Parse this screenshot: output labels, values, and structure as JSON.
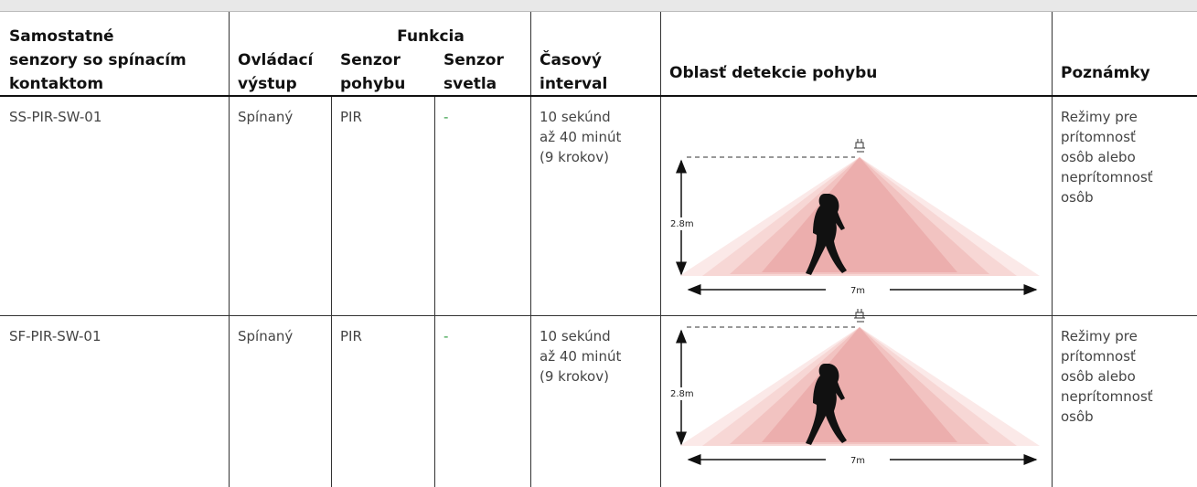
{
  "header": {
    "group": "Funkcia",
    "columns": [
      [
        "Samostatné",
        "senzory so spínacím",
        "kontaktom"
      ],
      [
        "Ovládací",
        "výstup"
      ],
      [
        "Senzor",
        "pohybu"
      ],
      [
        "Senzor",
        "svetla"
      ],
      [
        "Časový",
        "interval"
      ],
      [
        "Oblasť detekcie pohybu"
      ],
      [
        "Poznámky"
      ]
    ]
  },
  "rows": [
    {
      "cells": [
        [
          "SS-PIR-SW-01"
        ],
        [
          "Spínaný"
        ],
        [
          "PIR"
        ],
        [
          "-"
        ],
        [
          "10 sekúnd",
          "až 40 minút",
          "(9 krokov)"
        ]
      ],
      "diagram": {
        "height": "2.8m",
        "width": "7m"
      },
      "notes": [
        "Režimy pre",
        "prítomnosť",
        "osôb alebo",
        "neprítomnosť",
        "osôb"
      ]
    },
    {
      "cells": [
        [
          "SF-PIR-SW-01"
        ],
        [
          "Spínaný"
        ],
        [
          "PIR"
        ],
        [
          "-"
        ],
        [
          "10 sekúnd",
          "až 40 minút",
          "(9 krokov)"
        ]
      ],
      "diagram": {
        "height": "2.8m",
        "width": "7m"
      },
      "notes": [
        "Režimy pre",
        "prítomnosť",
        "osôb alebo",
        "neprítomnosť",
        "osôb"
      ]
    }
  ]
}
